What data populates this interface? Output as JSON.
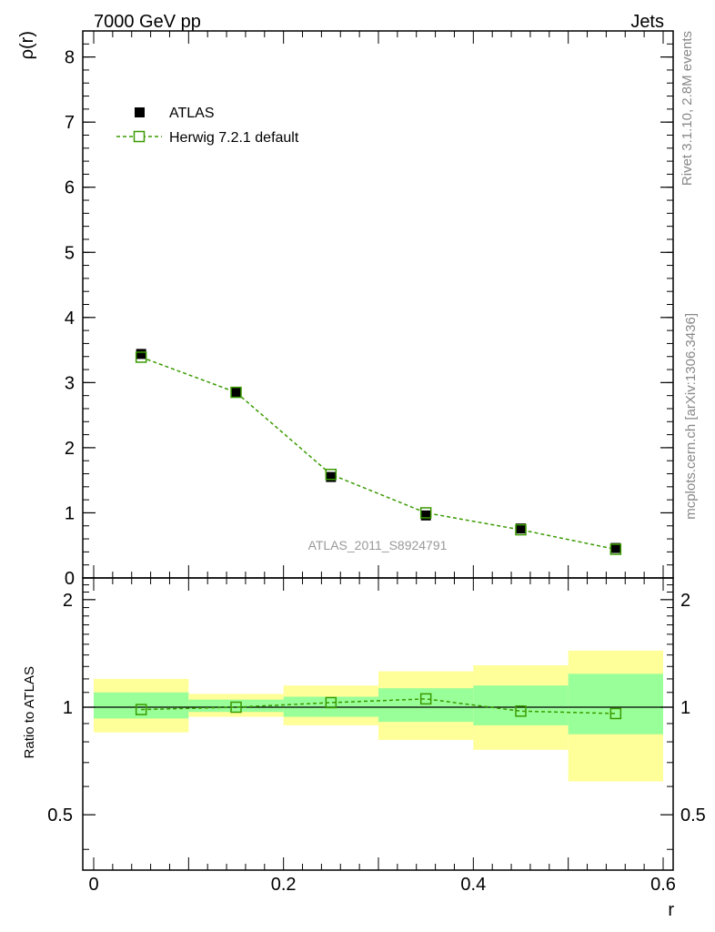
{
  "header": {
    "left_label": "7000 GeV pp",
    "right_label": "Jets"
  },
  "side_labels": {
    "rivet": "Rivet 3.1.10,  2.8M events",
    "mcplots": "mcplots.cern.ch [arXiv:1306.3436]"
  },
  "analysis_tag": "ATLAS_2011_S8924791",
  "legend": {
    "data_label": "ATLAS",
    "mc_label": "Herwig 7.2.1 default"
  },
  "colors": {
    "data": "#000000",
    "mc": "#3a9a00",
    "band_inner": "#99ff99",
    "band_outer": "#ffff99",
    "axis": "#000000",
    "tag": "#999999"
  },
  "chart_data": [
    {
      "type": "scatter",
      "panel": "main",
      "ylabel": "ρ(r)",
      "xlim": [
        0,
        0.6
      ],
      "ylim": [
        0,
        8.4
      ],
      "yticks": [
        0,
        1,
        2,
        3,
        4,
        5,
        6,
        7,
        8
      ],
      "series": [
        {
          "name": "ATLAS",
          "x": [
            0.05,
            0.15,
            0.25,
            0.35,
            0.45,
            0.55
          ],
          "values": [
            3.44,
            2.85,
            1.55,
            0.96,
            0.76,
            0.46
          ]
        },
        {
          "name": "Herwig 7.2.1 default",
          "x": [
            0.05,
            0.15,
            0.25,
            0.35,
            0.45,
            0.55
          ],
          "values": [
            3.39,
            2.85,
            1.59,
            1.0,
            0.74,
            0.44
          ]
        }
      ]
    },
    {
      "type": "line",
      "panel": "ratio",
      "ylabel": "Ratio to ATLAS",
      "xlabel": "r",
      "xlim": [
        0,
        0.6
      ],
      "ylim": [
        0.35,
        2.3
      ],
      "yticks": [
        0.5,
        1,
        2
      ],
      "xticks": [
        0,
        0.2,
        0.4,
        0.6
      ],
      "bins": [
        [
          0,
          0.1
        ],
        [
          0.1,
          0.2
        ],
        [
          0.2,
          0.3
        ],
        [
          0.3,
          0.4
        ],
        [
          0.4,
          0.5
        ],
        [
          0.5,
          0.6
        ]
      ],
      "band_inner": [
        [
          0.93,
          1.1
        ],
        [
          0.97,
          1.05
        ],
        [
          0.94,
          1.07
        ],
        [
          0.91,
          1.13
        ],
        [
          0.89,
          1.15
        ],
        [
          0.84,
          1.24
        ]
      ],
      "band_outer": [
        [
          0.85,
          1.2
        ],
        [
          0.94,
          1.09
        ],
        [
          0.89,
          1.15
        ],
        [
          0.81,
          1.26
        ],
        [
          0.76,
          1.31
        ],
        [
          0.62,
          1.44
        ]
      ],
      "series": [
        {
          "name": "Herwig 7.2.1 default / ATLAS",
          "x": [
            0.05,
            0.15,
            0.25,
            0.35,
            0.45,
            0.55
          ],
          "values": [
            0.985,
            1.0,
            1.03,
            1.055,
            0.975,
            0.96
          ]
        }
      ]
    }
  ]
}
